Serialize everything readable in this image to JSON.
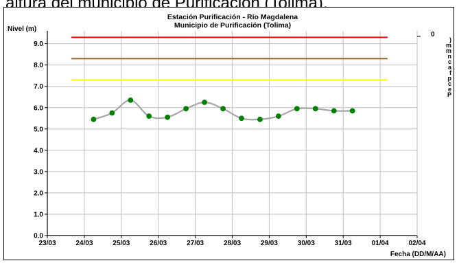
{
  "caption": "altura del municipio de Purificación (Tolima).",
  "chart_data": {
    "type": "line",
    "title": "Estación Purificación - Río Magdalena",
    "subtitle": "Municipio de Purificación (Tolima)",
    "ylabel": "Nivel (m)",
    "xlabel": "Fecha (DD/M/AA)",
    "ylim": [
      0,
      9.6
    ],
    "xlim": [
      0,
      10
    ],
    "grid": true,
    "y_ticks": [
      "0.0",
      "1.0",
      "2.0",
      "3.0",
      "4.0",
      "5.0",
      "6.0",
      "7.0",
      "8.0",
      "9.0"
    ],
    "x_ticks": [
      "23/03",
      "24/03",
      "25/03",
      "26/03",
      "27/03",
      "28/03",
      "29/03",
      "30/03",
      "31/03",
      "01/04",
      "02/04"
    ],
    "right_axis": {
      "label_top": "0",
      "label_fragments": [
        ")",
        "m",
        "m",
        "n",
        "c",
        "a",
        "f",
        "p",
        "c",
        "e",
        "P"
      ]
    },
    "threshold_lines": [
      {
        "value": 9.3,
        "color": "#ff0000"
      },
      {
        "value": 8.3,
        "color": "#996633"
      },
      {
        "value": 7.3,
        "color": "#ffff00"
      }
    ],
    "series": [
      {
        "line_color": "#a6a6a6",
        "marker_color": "#008000",
        "x": [
          1.25,
          1.75,
          2.25,
          2.75,
          3.25,
          3.75,
          4.25,
          4.75,
          5.25,
          5.75,
          6.25,
          6.75,
          7.25,
          7.75,
          8.25
        ],
        "values": [
          5.45,
          5.75,
          6.35,
          5.6,
          5.55,
          5.95,
          6.25,
          5.95,
          5.5,
          5.45,
          5.6,
          5.95,
          5.95,
          5.85,
          5.85
        ]
      }
    ]
  }
}
